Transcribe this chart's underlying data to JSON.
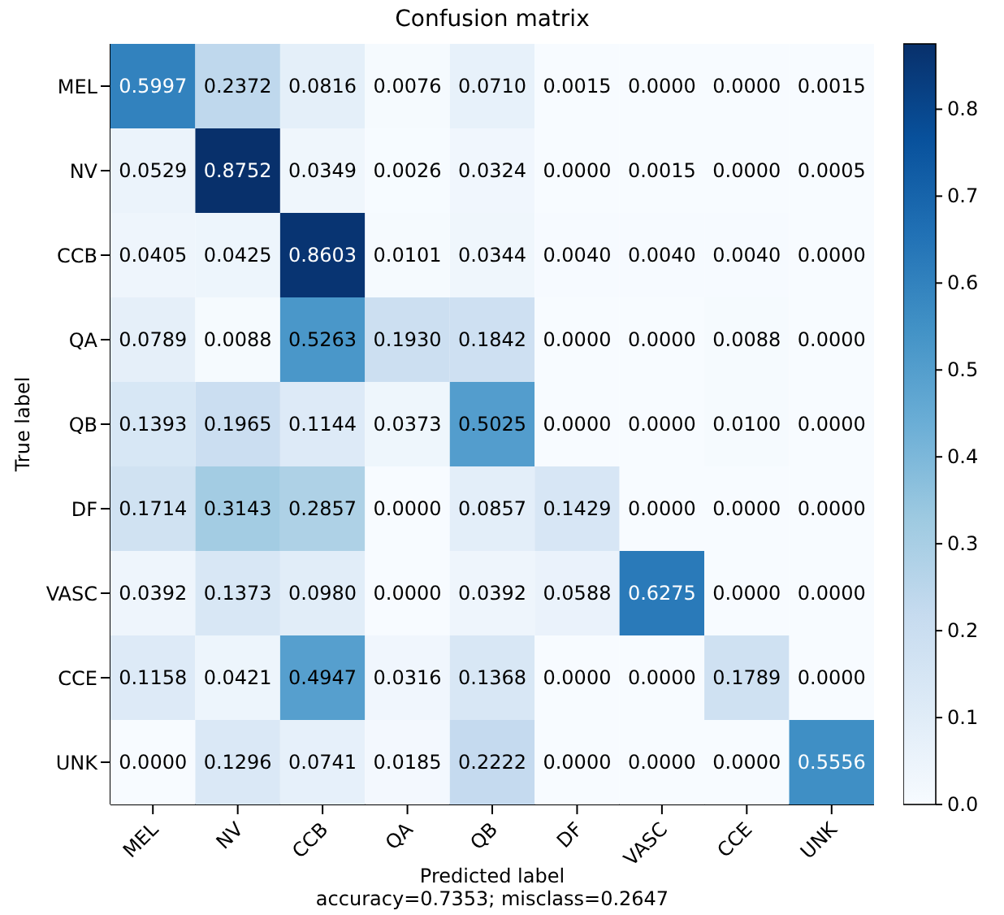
{
  "chart_data": {
    "type": "heatmap",
    "title": "Confusion matrix",
    "xlabel": "Predicted label",
    "ylabel": "True label",
    "annotations": [
      "accuracy=0.7353; misclass=0.2647"
    ],
    "categories": [
      "MEL",
      "NV",
      "CCB",
      "QA",
      "QB",
      "DF",
      "VASC",
      "CCE",
      "UNK"
    ],
    "y_categories": [
      "MEL",
      "NV",
      "CCB",
      "QA",
      "QB",
      "DF",
      "VASC",
      "CCE",
      "UNK"
    ],
    "cells": [
      [
        0.5997,
        0.2372,
        0.0816,
        0.0076,
        0.071,
        0.0015,
        0.0,
        0.0,
        0.0015
      ],
      [
        0.0529,
        0.8752,
        0.0349,
        0.0026,
        0.0324,
        0.0,
        0.0015,
        0.0,
        0.0005
      ],
      [
        0.0405,
        0.0425,
        0.8603,
        0.0101,
        0.0344,
        0.004,
        0.004,
        0.004,
        0.0
      ],
      [
        0.0789,
        0.0088,
        0.5263,
        0.193,
        0.1842,
        0.0,
        0.0,
        0.0088,
        0.0
      ],
      [
        0.1393,
        0.1965,
        0.1144,
        0.0373,
        0.5025,
        0.0,
        0.0,
        0.01,
        0.0
      ],
      [
        0.1714,
        0.3143,
        0.2857,
        0.0,
        0.0857,
        0.1429,
        0.0,
        0.0,
        0.0
      ],
      [
        0.0392,
        0.1373,
        0.098,
        0.0,
        0.0392,
        0.0588,
        0.6275,
        0.0,
        0.0
      ],
      [
        0.1158,
        0.0421,
        0.4947,
        0.0316,
        0.1368,
        0.0,
        0.0,
        0.1789,
        0.0
      ],
      [
        0.0,
        0.1296,
        0.0741,
        0.0185,
        0.2222,
        0.0,
        0.0,
        0.0,
        0.5556
      ]
    ],
    "cell_labels": [
      [
        "0.5997",
        "0.2372",
        "0.0816",
        "0.0076",
        "0.0710",
        "0.0015",
        "0.0000",
        "0.0000",
        "0.0015"
      ],
      [
        "0.0529",
        "0.8752",
        "0.0349",
        "0.0026",
        "0.0324",
        "0.0000",
        "0.0015",
        "0.0000",
        "0.0005"
      ],
      [
        "0.0405",
        "0.0425",
        "0.8603",
        "0.0101",
        "0.0344",
        "0.0040",
        "0.0040",
        "0.0040",
        "0.0000"
      ],
      [
        "0.0789",
        "0.0088",
        "0.5263",
        "0.1930",
        "0.1842",
        "0.0000",
        "0.0000",
        "0.0088",
        "0.0000"
      ],
      [
        "0.1393",
        "0.1965",
        "0.1144",
        "0.0373",
        "0.5025",
        "0.0000",
        "0.0000",
        "0.0100",
        "0.0000"
      ],
      [
        "0.1714",
        "0.3143",
        "0.2857",
        "0.0000",
        "0.0857",
        "0.1429",
        "0.0000",
        "0.0000",
        "0.0000"
      ],
      [
        "0.0392",
        "0.1373",
        "0.0980",
        "0.0000",
        "0.0392",
        "0.0588",
        "0.6275",
        "0.0000",
        "0.0000"
      ],
      [
        "0.1158",
        "0.0421",
        "0.4947",
        "0.0316",
        "0.1368",
        "0.0000",
        "0.0000",
        "0.1789",
        "0.0000"
      ],
      [
        "0.0000",
        "0.1296",
        "0.0741",
        "0.0185",
        "0.2222",
        "0.0000",
        "0.0000",
        "0.0000",
        "0.5556"
      ]
    ],
    "clim": [
      0,
      0.8752
    ],
    "cticks": [
      {
        "value": 0,
        "label": "0.0"
      },
      {
        "value": 0.1,
        "label": "0.1"
      },
      {
        "value": 0.2,
        "label": "0.2"
      },
      {
        "value": 0.3,
        "label": "0.3"
      },
      {
        "value": 0.4,
        "label": "0.4"
      },
      {
        "value": 0.5,
        "label": "0.5"
      },
      {
        "value": 0.6,
        "label": "0.6"
      },
      {
        "value": 0.7,
        "label": "0.7"
      },
      {
        "value": 0.8,
        "label": "0.8"
      }
    ],
    "data_labels": true
  }
}
